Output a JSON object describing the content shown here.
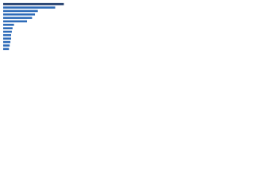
{
  "chart_data": {
    "type": "barh",
    "categories": [
      null,
      null,
      null,
      null,
      null,
      null,
      null,
      null,
      null,
      null,
      null,
      null,
      null,
      null
    ],
    "values": [
      84,
      72,
      48,
      44,
      40,
      33,
      15,
      13,
      12,
      11,
      11,
      10,
      9,
      8
    ],
    "colors": [
      "#1d3a6b",
      "#2e6bb8",
      "#2e6bb8",
      "#2e6bb8",
      "#2e6bb8",
      "#2e6bb8",
      "#2e6bb8",
      "#2e6bb8",
      "#2e6bb8",
      "#2e6bb8",
      "#2e6bb8",
      "#2e6bb8",
      "#2e6bb8",
      "#2e6bb8"
    ],
    "xlim": [
      0,
      100
    ]
  }
}
